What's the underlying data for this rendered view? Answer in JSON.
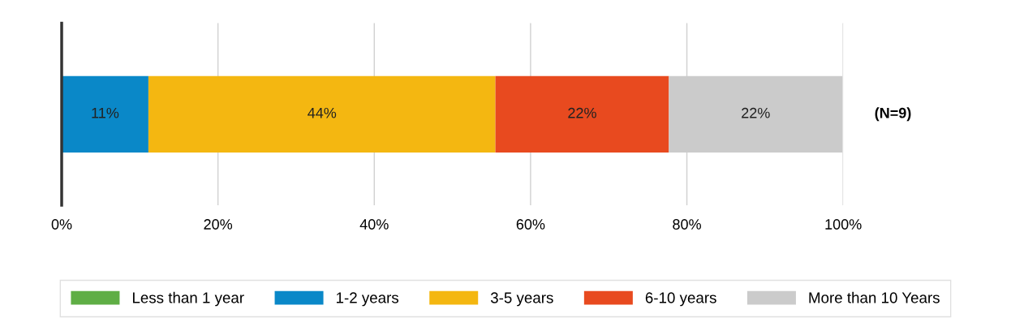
{
  "chart_data": {
    "type": "bar",
    "orientation": "horizontal",
    "stacked": true,
    "categories": [
      null
    ],
    "series": [
      {
        "name": "Less than 1 year",
        "color": "#5fae45",
        "values": [
          0
        ],
        "value_labels": [
          null
        ]
      },
      {
        "name": "1-2 years",
        "color": "#0a88c8",
        "values": [
          11.1
        ],
        "value_labels": [
          "11%"
        ]
      },
      {
        "name": "3-5 years",
        "color": "#f4b711",
        "values": [
          44.4
        ],
        "value_labels": [
          "44%"
        ]
      },
      {
        "name": "6-10 years",
        "color": "#e84a1f",
        "values": [
          22.2
        ],
        "value_labels": [
          "22%"
        ]
      },
      {
        "name": "More than 10 Years",
        "color": "#cbcbcb",
        "values": [
          22.2
        ],
        "value_labels": [
          "22%"
        ]
      }
    ],
    "xlim": [
      0,
      100
    ],
    "xticks": [
      {
        "value": 0,
        "label": "0%"
      },
      {
        "value": 20,
        "label": "20%"
      },
      {
        "value": 40,
        "label": "40%"
      },
      {
        "value": 60,
        "label": "60%"
      },
      {
        "value": 80,
        "label": "80%"
      },
      {
        "value": 100,
        "label": "100%"
      }
    ],
    "grid": "x",
    "legend": "bottom",
    "annotations": [
      "(N=9)"
    ]
  }
}
